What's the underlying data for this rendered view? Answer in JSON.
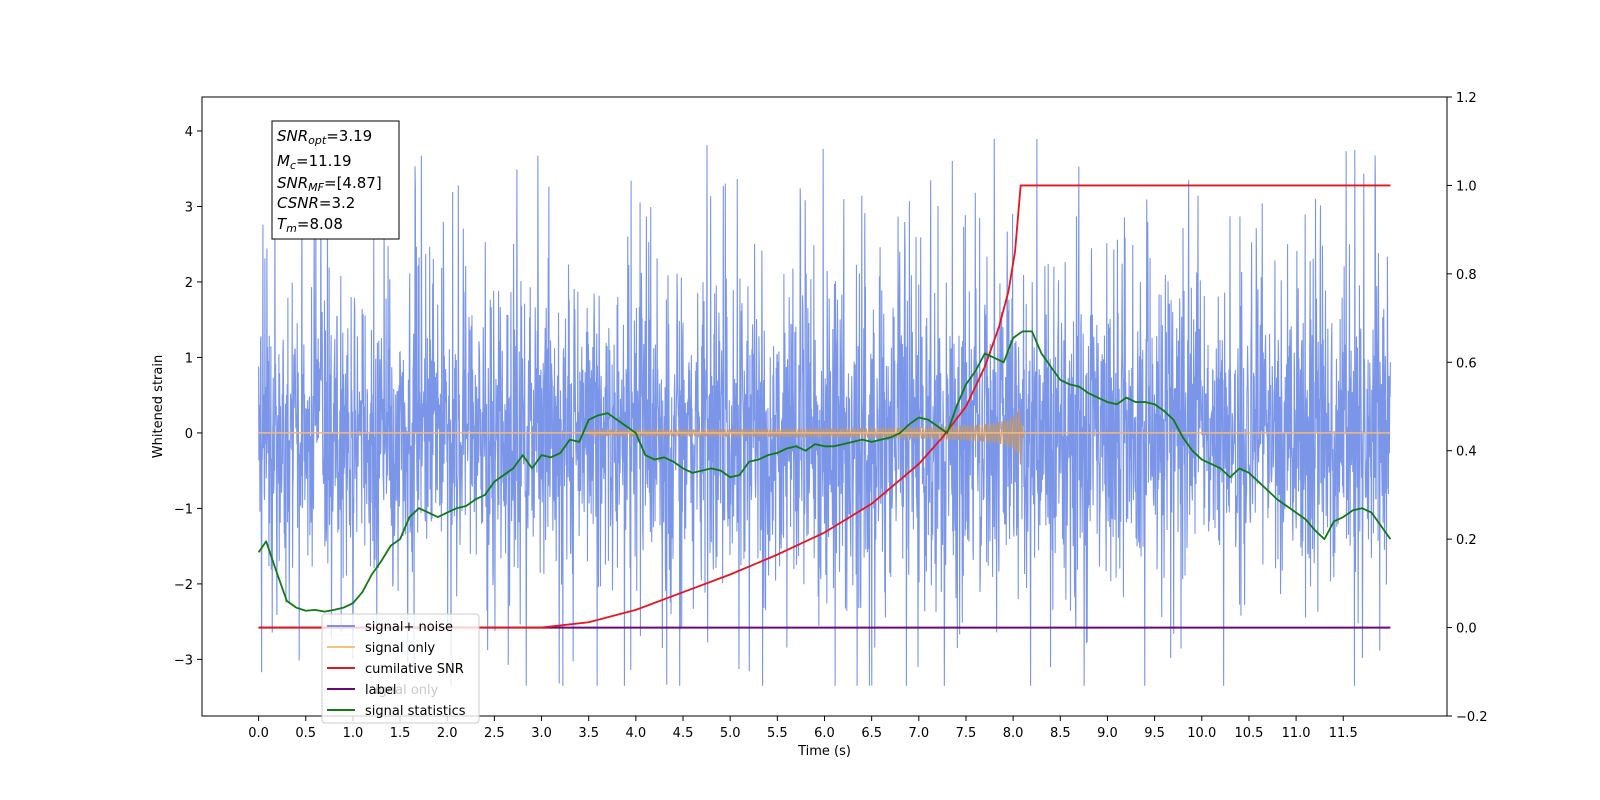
{
  "chart_data": {
    "type": "line",
    "xlabel": "Time (s)",
    "ylabel": "Whitened strain",
    "xlim": [
      -0.6,
      12.6
    ],
    "ylim": [
      -3.75,
      4.45
    ],
    "y2lim": [
      -0.2,
      1.2
    ],
    "x_ticks": [
      "0.0",
      "0.5",
      "1.0",
      "1.5",
      "2.0",
      "2.5",
      "3.0",
      "3.5",
      "4.0",
      "4.5",
      "5.0",
      "5.5",
      "6.0",
      "6.5",
      "7.0",
      "7.5",
      "8.0",
      "8.5",
      "9.0",
      "9.5",
      "10.0",
      "10.5",
      "11.0",
      "11.5"
    ],
    "y_ticks": [
      "−3",
      "−2",
      "−1",
      "0",
      "1",
      "2",
      "3",
      "4"
    ],
    "y2_ticks": [
      "−0.2",
      "0.0",
      "0.2",
      "0.4",
      "0.6",
      "0.8",
      "1.0",
      "1.2"
    ],
    "annotation": {
      "snr_opt_base": "SNR",
      "snr_opt_sub": "opt",
      "snr_opt_value": "=3.19",
      "mc_base": "M",
      "mc_sub": "c",
      "mc_value": "=11.19",
      "snr_mf_base": "SNR",
      "snr_mf_sub": "MF",
      "snr_mf_value": "=[4.87]",
      "csnr_base": "CSNR",
      "csnr_value": "=3.2",
      "tm_base": "T",
      "tm_sub": "m",
      "tm_value": "=8.08"
    },
    "legend": {
      "placement": "lower-left",
      "entries": [
        "signal+ noise",
        "signal only",
        "cumilative SNR",
        "label",
        "signal statistics"
      ],
      "overlapped_text": "ignal only"
    },
    "series": [
      {
        "name": "signal+ noise",
        "axis": "left",
        "color": "#7b96e8",
        "x_range": [
          0.0,
          12.0
        ],
        "amplitude_envelope": {
          "typical_max": 2.3,
          "typical_min": -2.3,
          "peak_max": 3.9,
          "peak_min": -3.35
        }
      },
      {
        "name": "signal only",
        "axis": "left",
        "color": "#f5b87a",
        "chirp_start": 3.5,
        "merger_time": 8.08,
        "peak_amplitude": 0.45,
        "x_range": [
          0.0,
          12.0
        ]
      },
      {
        "name": "cumilative SNR",
        "axis": "right",
        "color": "#e8141e",
        "x": [
          0.0,
          3.0,
          3.5,
          4.0,
          4.5,
          5.0,
          5.5,
          6.0,
          6.5,
          7.0,
          7.25,
          7.5,
          7.7,
          7.85,
          7.95,
          8.02,
          8.08,
          12.0
        ],
        "y": [
          0.0,
          0.0,
          0.012,
          0.04,
          0.08,
          0.12,
          0.165,
          0.215,
          0.28,
          0.37,
          0.43,
          0.5,
          0.59,
          0.68,
          0.76,
          0.85,
          1.0,
          1.0
        ]
      },
      {
        "name": "label",
        "axis": "right",
        "color": "#6a0a78",
        "x": [
          0.0,
          12.0
        ],
        "y": [
          0.0,
          0.0
        ]
      },
      {
        "name": "signal statistics",
        "axis": "right",
        "color": "#127a12",
        "x": [
          0.0,
          0.08,
          0.2,
          0.3,
          0.4,
          0.5,
          0.6,
          0.7,
          0.8,
          0.9,
          1.0,
          1.1,
          1.2,
          1.3,
          1.4,
          1.5,
          1.6,
          1.7,
          1.8,
          1.9,
          2.0,
          2.1,
          2.2,
          2.3,
          2.4,
          2.5,
          2.6,
          2.7,
          2.8,
          2.9,
          3.0,
          3.1,
          3.2,
          3.3,
          3.4,
          3.5,
          3.6,
          3.7,
          3.8,
          3.9,
          4.0,
          4.1,
          4.2,
          4.3,
          4.4,
          4.5,
          4.6,
          4.7,
          4.8,
          4.9,
          5.0,
          5.1,
          5.2,
          5.3,
          5.4,
          5.5,
          5.6,
          5.7,
          5.8,
          5.9,
          6.0,
          6.1,
          6.2,
          6.3,
          6.4,
          6.5,
          6.6,
          6.7,
          6.8,
          6.9,
          7.0,
          7.1,
          7.2,
          7.3,
          7.4,
          7.5,
          7.6,
          7.7,
          7.8,
          7.9,
          8.0,
          8.1,
          8.2,
          8.3,
          8.4,
          8.5,
          8.6,
          8.7,
          8.8,
          8.9,
          9.0,
          9.1,
          9.2,
          9.3,
          9.4,
          9.5,
          9.6,
          9.7,
          9.8,
          9.9,
          10.0,
          10.1,
          10.2,
          10.3,
          10.4,
          10.5,
          10.6,
          10.7,
          10.8,
          10.9,
          11.0,
          11.1,
          11.2,
          11.3,
          11.4,
          11.5,
          11.6,
          11.7,
          11.8,
          11.9,
          12.0
        ],
        "y": [
          0.17,
          0.195,
          0.12,
          0.06,
          0.045,
          0.038,
          0.04,
          0.036,
          0.04,
          0.045,
          0.055,
          0.08,
          0.12,
          0.15,
          0.185,
          0.2,
          0.25,
          0.27,
          0.26,
          0.25,
          0.26,
          0.27,
          0.275,
          0.29,
          0.3,
          0.33,
          0.345,
          0.36,
          0.39,
          0.36,
          0.39,
          0.385,
          0.395,
          0.425,
          0.42,
          0.47,
          0.48,
          0.485,
          0.47,
          0.455,
          0.44,
          0.39,
          0.38,
          0.385,
          0.375,
          0.36,
          0.35,
          0.355,
          0.36,
          0.355,
          0.34,
          0.345,
          0.375,
          0.38,
          0.39,
          0.395,
          0.405,
          0.41,
          0.4,
          0.415,
          0.41,
          0.41,
          0.415,
          0.42,
          0.425,
          0.42,
          0.425,
          0.43,
          0.44,
          0.46,
          0.475,
          0.47,
          0.455,
          0.44,
          0.5,
          0.55,
          0.58,
          0.62,
          0.61,
          0.6,
          0.655,
          0.67,
          0.67,
          0.62,
          0.59,
          0.56,
          0.55,
          0.545,
          0.53,
          0.52,
          0.51,
          0.505,
          0.52,
          0.51,
          0.51,
          0.505,
          0.49,
          0.47,
          0.43,
          0.4,
          0.38,
          0.37,
          0.36,
          0.34,
          0.36,
          0.35,
          0.33,
          0.31,
          0.29,
          0.275,
          0.26,
          0.245,
          0.22,
          0.2,
          0.24,
          0.25,
          0.265,
          0.27,
          0.26,
          0.23,
          0.2
        ]
      }
    ]
  }
}
